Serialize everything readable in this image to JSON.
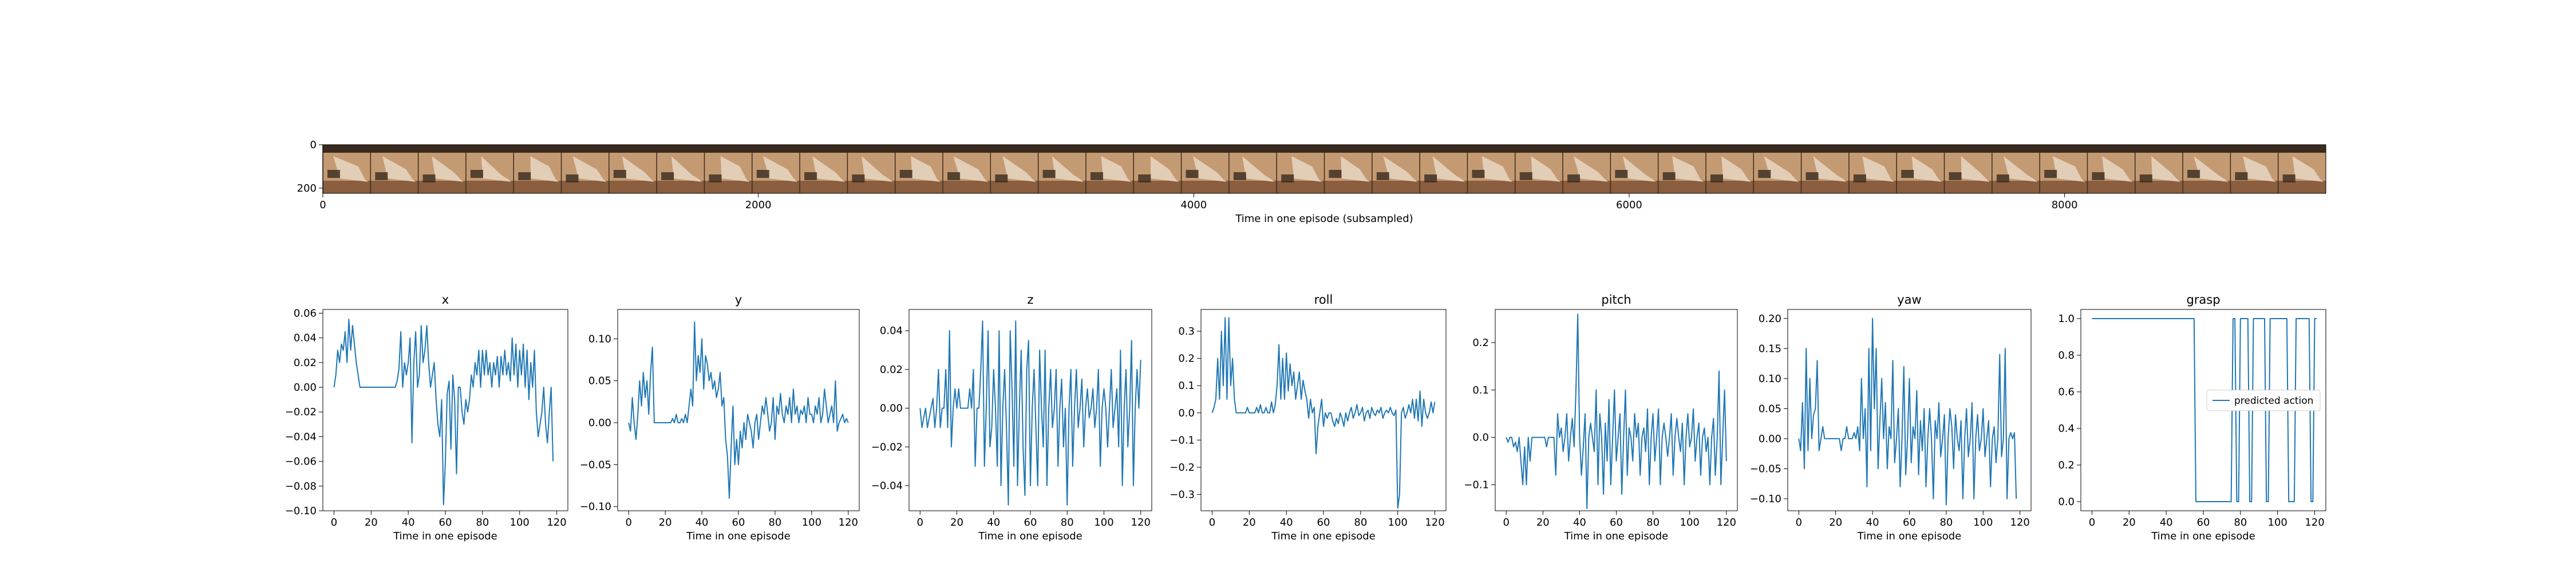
{
  "strip": {
    "xlabel": "Time in one episode (subsampled)",
    "xticks": [
      0,
      2000,
      4000,
      6000,
      8000
    ],
    "xlim": [
      0,
      9200
    ],
    "yticks": [
      0,
      200
    ],
    "ylim": [
      0,
      224
    ],
    "frame_count": 42,
    "colors": {
      "dark": "#3a2a1e",
      "mid": "#8a5e3e",
      "light": "#c49a72",
      "bright": "#e8d6c2"
    }
  },
  "chart_data": [
    {
      "type": "line",
      "title": "x",
      "xlabel": "Time in one episode",
      "xticks": [
        0,
        20,
        40,
        60,
        80,
        100,
        120
      ],
      "xlim": [
        -6,
        126
      ],
      "yticks": [
        -0.1,
        -0.08,
        -0.06,
        -0.04,
        -0.02,
        0.0,
        0.02,
        0.04,
        0.06
      ],
      "ylim": [
        -0.1,
        0.063
      ],
      "color": "#1f77b4",
      "values": [
        0.0,
        0.01,
        0.03,
        0.02,
        0.035,
        0.03,
        0.045,
        0.02,
        0.055,
        0.03,
        0.05,
        0.035,
        0.02,
        0.01,
        0.0,
        0.0,
        0.0,
        0.0,
        0.0,
        0.0,
        0.0,
        0.0,
        0.0,
        0.0,
        0.0,
        0.0,
        0.0,
        0.0,
        0.0,
        0.0,
        0.0,
        0.0,
        0.0,
        0.0,
        0.005,
        0.015,
        0.045,
        0.0,
        0.02,
        0.01,
        0.02,
        0.04,
        -0.045,
        0.02,
        0.045,
        0.0,
        0.01,
        0.05,
        0.02,
        0.03,
        0.05,
        0.02,
        0.0,
        0.01,
        0.02,
        -0.01,
        -0.03,
        -0.04,
        -0.01,
        -0.095,
        -0.06,
        -0.005,
        0.005,
        -0.05,
        0.01,
        -0.01,
        -0.07,
        0.0,
        0.0,
        -0.02,
        -0.03,
        -0.01,
        -0.02,
        -0.01,
        0.01,
        0.0,
        0.02,
        0.01,
        0.03,
        0.0,
        0.03,
        0.01,
        0.03,
        0.01,
        0.02,
        0.0,
        0.02,
        0.01,
        0.025,
        0.0,
        0.025,
        0.01,
        0.03,
        0.01,
        0.02,
        0.005,
        0.04,
        0.01,
        0.035,
        0.0,
        0.03,
        0.01,
        0.035,
        0.0,
        0.03,
        -0.01,
        0.02,
        0.0,
        0.03,
        -0.02,
        -0.04,
        -0.03,
        -0.02,
        0.0,
        -0.03,
        -0.045,
        -0.02,
        0.0,
        -0.06
      ]
    },
    {
      "type": "line",
      "title": "y",
      "xlabel": "Time in one episode",
      "xticks": [
        0,
        20,
        40,
        60,
        80,
        100,
        120
      ],
      "xlim": [
        -6,
        126
      ],
      "yticks": [
        -0.1,
        -0.05,
        0.0,
        0.05,
        0.1
      ],
      "ylim": [
        -0.105,
        0.135
      ],
      "color": "#1f77b4",
      "values": [
        0.0,
        -0.01,
        0.03,
        0.0,
        -0.02,
        0.01,
        0.05,
        0.02,
        0.06,
        0.03,
        0.05,
        0.01,
        0.06,
        0.09,
        0.0,
        0.0,
        0.0,
        0.0,
        0.0,
        0.0,
        0.0,
        0.0,
        0.0,
        0.0,
        0.005,
        0.0,
        0.01,
        0.0,
        0.0,
        0.005,
        0.0,
        0.01,
        0.0,
        0.02,
        0.04,
        0.02,
        0.12,
        0.05,
        0.08,
        0.06,
        0.1,
        0.04,
        0.08,
        0.07,
        0.05,
        0.06,
        0.04,
        0.05,
        0.03,
        0.04,
        0.06,
        0.02,
        0.03,
        -0.02,
        -0.04,
        -0.09,
        -0.03,
        0.02,
        -0.05,
        -0.02,
        -0.05,
        -0.01,
        -0.03,
        0.0,
        -0.02,
        0.01,
        0.0,
        -0.01,
        -0.03,
        0.0,
        0.01,
        -0.02,
        0.0,
        0.02,
        0.01,
        0.03,
        0.01,
        -0.01,
        0.0,
        0.03,
        -0.02,
        0.02,
        0.01,
        0.035,
        0.01,
        0.0,
        0.02,
        0.01,
        0.03,
        0.0,
        0.04,
        0.01,
        0.02,
        0.0,
        0.015,
        0.01,
        0.02,
        0.0,
        0.03,
        0.01,
        0.01,
        0.0,
        0.02,
        0.01,
        0.03,
        0.0,
        0.01,
        0.04,
        0.02,
        0.0,
        0.01,
        0.02,
        0.0,
        0.05,
        -0.01,
        0.0,
        0.005,
        0.01,
        0.0,
        0.005,
        0.0
      ]
    },
    {
      "type": "line",
      "title": "z",
      "xlabel": "Time in one episode",
      "xticks": [
        0,
        20,
        40,
        60,
        80,
        100,
        120
      ],
      "xlim": [
        -6,
        126
      ],
      "yticks": [
        -0.04,
        -0.02,
        0.0,
        0.02,
        0.04
      ],
      "ylim": [
        -0.053,
        0.051
      ],
      "color": "#1f77b4",
      "values": [
        0.0,
        -0.01,
        -0.005,
        0.0,
        -0.01,
        -0.005,
        0.0,
        0.005,
        -0.01,
        0.0,
        0.02,
        -0.01,
        0.0,
        0.0,
        0.02,
        -0.01,
        0.04,
        -0.02,
        0.0,
        0.01,
        0.0,
        0.01,
        0.0,
        0.0,
        0.0,
        0.0,
        0.0,
        0.01,
        0.0,
        0.02,
        -0.03,
        0.0,
        0.0,
        0.02,
        0.045,
        -0.03,
        0.0,
        0.04,
        -0.02,
        -0.01,
        0.02,
        0.0,
        -0.03,
        0.04,
        -0.04,
        0.0,
        0.02,
        -0.01,
        -0.05,
        0.04,
        0.01,
        -0.03,
        0.045,
        -0.04,
        0.0,
        0.03,
        -0.02,
        -0.045,
        0.02,
        0.035,
        -0.04,
        0.0,
        0.02,
        -0.01,
        -0.04,
        0.03,
        0.0,
        -0.02,
        0.03,
        -0.04,
        0.0,
        0.02,
        -0.01,
        0.0,
        0.02,
        -0.03,
        0.0,
        0.015,
        -0.02,
        0.0,
        -0.05,
        0.0,
        0.02,
        -0.03,
        0.0,
        0.02,
        -0.01,
        0.0,
        0.015,
        -0.02,
        0.0,
        0.01,
        -0.005,
        0.0,
        0.01,
        -0.01,
        0.0,
        0.02,
        -0.03,
        0.0,
        0.01,
        0.0,
        -0.02,
        0.0,
        0.02,
        -0.01,
        0.0,
        0.01,
        -0.02,
        0.03,
        -0.04,
        0.0,
        0.02,
        -0.02,
        0.0,
        0.035,
        -0.04,
        0.0,
        0.02,
        0.0,
        0.025
      ]
    },
    {
      "type": "line",
      "title": "roll",
      "xlabel": "Time in one episode",
      "xticks": [
        0,
        20,
        40,
        60,
        80,
        100,
        120
      ],
      "xlim": [
        -6,
        126
      ],
      "yticks": [
        -0.3,
        -0.2,
        -0.1,
        0.0,
        0.1,
        0.2,
        0.3
      ],
      "ylim": [
        -0.36,
        0.38
      ],
      "color": "#1f77b4",
      "values": [
        0.0,
        0.02,
        0.05,
        0.2,
        0.05,
        0.3,
        0.1,
        0.35,
        0.05,
        0.35,
        0.1,
        0.2,
        0.05,
        0.0,
        0.0,
        0.0,
        0.0,
        0.0,
        0.0,
        0.02,
        0.0,
        0.0,
        0.0,
        0.0,
        0.02,
        0.0,
        0.03,
        0.0,
        0.0,
        0.02,
        0.0,
        0.0,
        0.04,
        0.0,
        0.03,
        0.1,
        0.25,
        0.05,
        0.2,
        0.05,
        0.22,
        0.08,
        0.18,
        0.1,
        0.15,
        0.05,
        0.1,
        0.15,
        0.05,
        0.12,
        0.08,
        0.05,
        -0.02,
        0.05,
        0.0,
        0.02,
        -0.15,
        -0.05,
        0.0,
        0.05,
        -0.05,
        0.0,
        -0.02,
        0.0,
        0.0,
        -0.03,
        -0.05,
        -0.02,
        -0.04,
        0.0,
        -0.02,
        -0.05,
        0.0,
        -0.03,
        0.0,
        0.02,
        -0.02,
        0.0,
        0.03,
        -0.01,
        0.0,
        0.02,
        -0.03,
        0.0,
        0.01,
        -0.02,
        0.02,
        0.0,
        -0.01,
        0.01,
        0.0,
        0.02,
        -0.02,
        0.0,
        0.01,
        0.0,
        0.02,
        0.0,
        -0.01,
        0.01,
        -0.35,
        -0.3,
        0.0,
        0.02,
        -0.02,
        0.0,
        0.03,
        0.0,
        0.05,
        -0.02,
        0.05,
        -0.03,
        0.08,
        -0.05,
        0.05,
        0.0,
        -0.02,
        0.0,
        0.04,
        0.0,
        0.04
      ]
    },
    {
      "type": "line",
      "title": "pitch",
      "xlabel": "Time in one episode",
      "xticks": [
        0,
        20,
        40,
        60,
        80,
        100,
        120
      ],
      "xlim": [
        -6,
        126
      ],
      "yticks": [
        -0.1,
        0.0,
        0.1,
        0.2
      ],
      "ylim": [
        -0.155,
        0.27
      ],
      "color": "#1f77b4",
      "values": [
        0.0,
        -0.01,
        0.0,
        0.0,
        -0.02,
        -0.01,
        -0.03,
        0.0,
        -0.05,
        -0.1,
        -0.02,
        -0.1,
        0.0,
        -0.05,
        0.0,
        0.0,
        0.0,
        0.0,
        0.0,
        0.0,
        0.0,
        0.0,
        -0.02,
        0.0,
        0.0,
        0.0,
        0.0,
        -0.08,
        0.05,
        0.0,
        0.02,
        -0.03,
        0.0,
        0.05,
        -0.05,
        0.0,
        0.04,
        -0.02,
        0.1,
        0.26,
        0.0,
        -0.08,
        -0.02,
        0.05,
        -0.15,
        0.0,
        0.03,
        0.0,
        -0.03,
        0.1,
        -0.1,
        0.05,
        0.0,
        -0.12,
        0.03,
        -0.05,
        0.08,
        -0.1,
        0.0,
        0.1,
        -0.05,
        0.0,
        0.05,
        -0.12,
        0.0,
        0.1,
        -0.08,
        0.02,
        0.0,
        -0.05,
        0.05,
        0.0,
        0.03,
        -0.08,
        0.0,
        0.02,
        -0.03,
        0.06,
        -0.1,
        0.0,
        0.05,
        -0.05,
        0.0,
        0.06,
        -0.1,
        0.0,
        0.03,
        0.0,
        -0.04,
        0.0,
        0.05,
        -0.08,
        0.0,
        0.04,
        0.0,
        -0.03,
        0.03,
        -0.1,
        0.0,
        0.05,
        -0.02,
        0.0,
        0.06,
        -0.05,
        0.0,
        0.03,
        -0.08,
        0.0,
        0.02,
        -0.03,
        0.0,
        -0.1,
        0.0,
        0.04,
        -0.08,
        0.0,
        0.14,
        -0.1,
        0.0,
        0.1,
        -0.05
      ]
    },
    {
      "type": "line",
      "title": "yaw",
      "xlabel": "Time in one episode",
      "xticks": [
        0,
        20,
        40,
        60,
        80,
        100,
        120
      ],
      "xlim": [
        -6,
        126
      ],
      "yticks": [
        -0.1,
        -0.05,
        0.0,
        0.05,
        0.1,
        0.15,
        0.2
      ],
      "ylim": [
        -0.12,
        0.215
      ],
      "color": "#1f77b4",
      "values": [
        0.0,
        -0.02,
        0.06,
        -0.05,
        0.15,
        -0.02,
        0.1,
        0.0,
        0.04,
        0.05,
        0.13,
        -0.02,
        0.0,
        0.02,
        0.0,
        0.0,
        0.0,
        0.0,
        0.0,
        0.0,
        0.0,
        0.0,
        0.0,
        -0.02,
        0.0,
        0.0,
        0.02,
        0.0,
        0.0,
        0.0,
        0.01,
        0.0,
        0.02,
        -0.02,
        0.1,
        0.0,
        0.05,
        -0.08,
        0.15,
        -0.02,
        0.2,
        0.05,
        0.15,
        -0.05,
        0.03,
        0.1,
        0.0,
        0.06,
        -0.05,
        0.02,
        0.0,
        0.13,
        -0.04,
        0.0,
        0.05,
        -0.08,
        0.0,
        0.12,
        -0.06,
        0.0,
        0.1,
        -0.04,
        0.02,
        0.0,
        0.08,
        -0.06,
        0.03,
        -0.02,
        0.05,
        -0.08,
        0.0,
        0.05,
        0.0,
        -0.1,
        0.03,
        0.0,
        0.06,
        -0.03,
        0.0,
        0.04,
        -0.11,
        0.0,
        0.05,
        0.02,
        -0.05,
        0.04,
        0.0,
        -0.02,
        0.03,
        -0.1,
        0.0,
        0.05,
        -0.03,
        0.0,
        0.06,
        -0.1,
        0.0,
        0.04,
        -0.02,
        0.0,
        0.05,
        -0.03,
        0.0,
        0.03,
        -0.08,
        0.0,
        0.02,
        -0.04,
        0.0,
        0.14,
        -0.03,
        0.0,
        0.15,
        -0.1,
        0.0,
        0.01,
        0.0,
        0.01,
        -0.1
      ]
    },
    {
      "type": "line",
      "title": "grasp",
      "xlabel": "Time in one episode",
      "xticks": [
        0,
        20,
        40,
        60,
        80,
        100,
        120
      ],
      "xlim": [
        -6,
        126
      ],
      "yticks": [
        0.0,
        0.2,
        0.4,
        0.6,
        0.8,
        1.0
      ],
      "ylim": [
        -0.05,
        1.05
      ],
      "color": "#1f77b4",
      "legend": {
        "location": "center-right",
        "entries": [
          "predicted action"
        ]
      },
      "values": [
        1,
        1,
        1,
        1,
        1,
        1,
        1,
        1,
        1,
        1,
        1,
        1,
        1,
        1,
        1,
        1,
        1,
        1,
        1,
        1,
        1,
        1,
        1,
        1,
        1,
        1,
        1,
        1,
        1,
        1,
        1,
        1,
        1,
        1,
        1,
        1,
        1,
        1,
        1,
        1,
        1,
        1,
        1,
        1,
        1,
        1,
        1,
        1,
        1,
        1,
        1,
        1,
        1,
        1,
        1,
        1,
        0,
        0,
        0,
        0,
        0,
        0,
        0,
        0,
        0,
        0,
        0,
        0,
        0,
        0,
        0,
        0,
        0,
        0,
        0,
        0,
        1,
        1,
        0,
        0,
        1,
        1,
        1,
        1,
        1,
        0,
        0,
        1,
        1,
        1,
        1,
        1,
        1,
        1,
        0,
        0,
        1,
        1,
        1,
        1,
        1,
        1,
        1,
        1,
        1,
        1,
        0,
        0,
        0,
        0,
        1,
        1,
        1,
        1,
        1,
        1,
        1,
        1,
        0,
        0,
        1,
        1
      ]
    }
  ]
}
